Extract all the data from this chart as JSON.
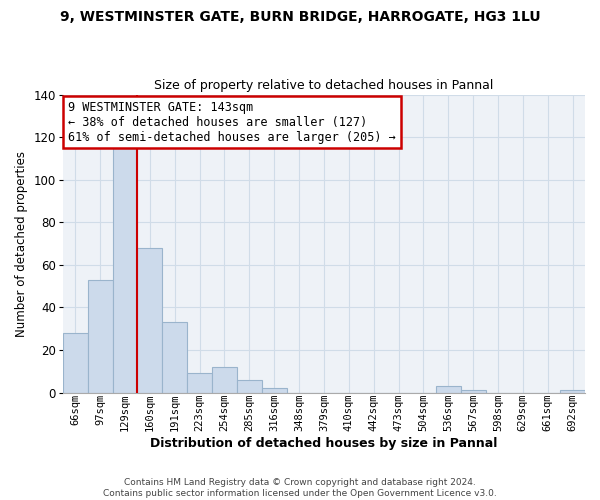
{
  "title": "9, WESTMINSTER GATE, BURN BRIDGE, HARROGATE, HG3 1LU",
  "subtitle": "Size of property relative to detached houses in Pannal",
  "xlabel": "Distribution of detached houses by size in Pannal",
  "ylabel": "Number of detached properties",
  "bar_labels": [
    "66sqm",
    "97sqm",
    "129sqm",
    "160sqm",
    "191sqm",
    "223sqm",
    "254sqm",
    "285sqm",
    "316sqm",
    "348sqm",
    "379sqm",
    "410sqm",
    "442sqm",
    "473sqm",
    "504sqm",
    "536sqm",
    "567sqm",
    "598sqm",
    "629sqm",
    "661sqm",
    "692sqm"
  ],
  "bar_values": [
    28,
    53,
    118,
    68,
    33,
    9,
    12,
    6,
    2,
    0,
    0,
    0,
    0,
    0,
    0,
    3,
    1,
    0,
    0,
    0,
    1
  ],
  "bar_color": "#ccdaeb",
  "bar_edge_color": "#9ab4cc",
  "redline_index": 2.5,
  "ylim": [
    0,
    140
  ],
  "yticks": [
    0,
    20,
    40,
    60,
    80,
    100,
    120,
    140
  ],
  "annotation_title": "9 WESTMINSTER GATE: 143sqm",
  "annotation_line1": "← 38% of detached houses are smaller (127)",
  "annotation_line2": "61% of semi-detached houses are larger (205) →",
  "annotation_box_edge": "#cc0000",
  "grid_color": "#d0dce8",
  "bg_color": "#eef2f7",
  "footer_line1": "Contains HM Land Registry data © Crown copyright and database right 2024.",
  "footer_line2": "Contains public sector information licensed under the Open Government Licence v3.0."
}
